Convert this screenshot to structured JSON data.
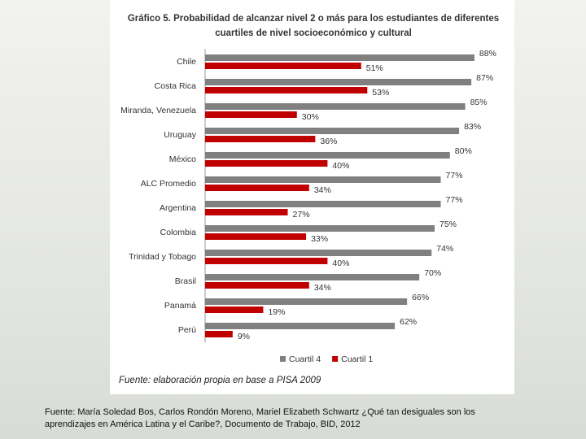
{
  "chart_data": {
    "type": "hbar",
    "title": "Gráfico 5. Probabilidad de alcanzar nivel 2 o más para los estudiantes de diferentes cuartiles de nivel socioeconómico y cultural",
    "note": "Fuente: elaboración propia en base a PISA 2009",
    "categories": [
      "Chile",
      "Costa Rica",
      "Miranda, Venezuela",
      "Uruguay",
      "México",
      "ALC Promedio",
      "Argentina",
      "Colombia",
      "Trinidad y Tobago",
      "Brasil",
      "Panamá",
      "Perú"
    ],
    "series": [
      {
        "name": "Cuartil 4",
        "color": "#808080",
        "values": [
          88,
          87,
          85,
          83,
          80,
          77,
          77,
          75,
          74,
          70,
          66,
          62
        ],
        "value_labels": [
          "88%",
          "87%",
          "85%",
          "83%",
          "80%",
          "77%",
          "77%",
          "75%",
          "74%",
          "70%",
          "66%",
          "62%"
        ]
      },
      {
        "name": "Cuartil 1",
        "color": "#c00000",
        "values": [
          51,
          53,
          30,
          36,
          40,
          34,
          27,
          33,
          40,
          34,
          19,
          9
        ],
        "value_labels": [
          "51%",
          "53%",
          "30%",
          "36%",
          "40%",
          "34%",
          "27%",
          "33%",
          "40%",
          "34%",
          "19%",
          "9%"
        ]
      }
    ],
    "xlim": [
      0,
      100
    ],
    "legend": "bottom"
  },
  "footer": "Fuente: María Soledad Bos, Carlos Rondón Moreno,  Mariel Elizabeth Schwartz ¿Qué tan desiguales son los aprendizajes en América Latina y el Caribe?, Documento de Trabajo, BID, 2012"
}
